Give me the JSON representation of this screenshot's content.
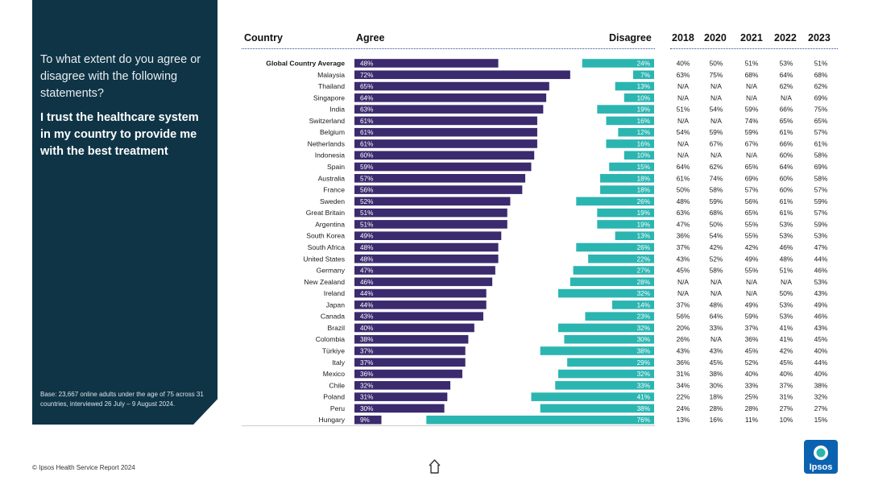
{
  "panel": {
    "question": "To what extent do you agree or disagree with the following statements?",
    "statement": "I trust the healthcare system in my country to provide me with the best treatment",
    "base_note": "Base: 23,667 online adults under the age of 75 across 31 countries, interviewed 26 July – 9 August 2024."
  },
  "headers": {
    "country": "Country",
    "agree": "Agree",
    "disagree": "Disagree",
    "years": [
      "2018",
      "2020",
      "2021",
      "2022",
      "2023"
    ]
  },
  "footer": {
    "copyright": "© Ipsos Health Service Report 2024",
    "logo_text": "Ipsos"
  },
  "colors": {
    "agree": "#3b2a6e",
    "disagree": "#2bb5b1",
    "panel": "#0f3446",
    "logo": "#0b62b0"
  },
  "chart_data": {
    "type": "bar",
    "title": "I trust the healthcare system in my country to provide me with the best treatment",
    "orientation": "horizontal diverging",
    "xlim": [
      0,
      100
    ],
    "series": [
      {
        "name": "Agree",
        "color": "#3b2a6e",
        "values": [
          48,
          72,
          65,
          64,
          63,
          61,
          61,
          61,
          60,
          59,
          57,
          56,
          52,
          51,
          51,
          49,
          48,
          48,
          47,
          46,
          44,
          44,
          43,
          40,
          38,
          37,
          37,
          36,
          32,
          31,
          30,
          9
        ]
      },
      {
        "name": "Disagree",
        "color": "#2bb5b1",
        "values": [
          24,
          7,
          13,
          10,
          19,
          16,
          12,
          16,
          10,
          15,
          18,
          18,
          26,
          19,
          19,
          13,
          26,
          22,
          27,
          28,
          32,
          14,
          23,
          32,
          30,
          38,
          29,
          32,
          33,
          41,
          38,
          76
        ]
      }
    ],
    "rows": [
      {
        "country": "Global Country Average",
        "agree": "48%",
        "disagree": "24%",
        "y2018": "40%",
        "y2020": "50%",
        "y2021": "51%",
        "y2022": "53%",
        "y2023": "51%"
      },
      {
        "country": "Malaysia",
        "agree": "72%",
        "disagree": "7%",
        "y2018": "63%",
        "y2020": "75%",
        "y2021": "68%",
        "y2022": "64%",
        "y2023": "68%"
      },
      {
        "country": "Thailand",
        "agree": "65%",
        "disagree": "13%",
        "y2018": "N/A",
        "y2020": "N/A",
        "y2021": "N/A",
        "y2022": "62%",
        "y2023": "62%"
      },
      {
        "country": "Singapore",
        "agree": "64%",
        "disagree": "10%",
        "y2018": "N/A",
        "y2020": "N/A",
        "y2021": "N/A",
        "y2022": "N/A",
        "y2023": "69%"
      },
      {
        "country": "India",
        "agree": "63%",
        "disagree": "19%",
        "y2018": "51%",
        "y2020": "54%",
        "y2021": "59%",
        "y2022": "66%",
        "y2023": "75%"
      },
      {
        "country": "Switzerland",
        "agree": "61%",
        "disagree": "16%",
        "y2018": "N/A",
        "y2020": "N/A",
        "y2021": "74%",
        "y2022": "65%",
        "y2023": "65%"
      },
      {
        "country": "Belgium",
        "agree": "61%",
        "disagree": "12%",
        "y2018": "54%",
        "y2020": "59%",
        "y2021": "59%",
        "y2022": "61%",
        "y2023": "57%"
      },
      {
        "country": "Netherlands",
        "agree": "61%",
        "disagree": "16%",
        "y2018": "N/A",
        "y2020": "67%",
        "y2021": "67%",
        "y2022": "66%",
        "y2023": "61%"
      },
      {
        "country": "Indonesia",
        "agree": "60%",
        "disagree": "10%",
        "y2018": "N/A",
        "y2020": "N/A",
        "y2021": "N/A",
        "y2022": "60%",
        "y2023": "58%"
      },
      {
        "country": "Spain",
        "agree": "59%",
        "disagree": "15%",
        "y2018": "64%",
        "y2020": "62%",
        "y2021": "65%",
        "y2022": "64%",
        "y2023": "69%"
      },
      {
        "country": "Australia",
        "agree": "57%",
        "disagree": "18%",
        "y2018": "61%",
        "y2020": "74%",
        "y2021": "69%",
        "y2022": "60%",
        "y2023": "58%"
      },
      {
        "country": "France",
        "agree": "56%",
        "disagree": "18%",
        "y2018": "50%",
        "y2020": "58%",
        "y2021": "57%",
        "y2022": "60%",
        "y2023": "57%"
      },
      {
        "country": "Sweden",
        "agree": "52%",
        "disagree": "26%",
        "y2018": "48%",
        "y2020": "59%",
        "y2021": "56%",
        "y2022": "61%",
        "y2023": "59%"
      },
      {
        "country": "Great Britain",
        "agree": "51%",
        "disagree": "19%",
        "y2018": "63%",
        "y2020": "68%",
        "y2021": "65%",
        "y2022": "61%",
        "y2023": "57%"
      },
      {
        "country": "Argentina",
        "agree": "51%",
        "disagree": "19%",
        "y2018": "47%",
        "y2020": "50%",
        "y2021": "55%",
        "y2022": "53%",
        "y2023": "59%"
      },
      {
        "country": "South Korea",
        "agree": "49%",
        "disagree": "13%",
        "y2018": "36%",
        "y2020": "54%",
        "y2021": "55%",
        "y2022": "53%",
        "y2023": "53%"
      },
      {
        "country": "South Africa",
        "agree": "48%",
        "disagree": "26%",
        "y2018": "37%",
        "y2020": "42%",
        "y2021": "42%",
        "y2022": "46%",
        "y2023": "47%"
      },
      {
        "country": "United States",
        "agree": "48%",
        "disagree": "22%",
        "y2018": "43%",
        "y2020": "52%",
        "y2021": "49%",
        "y2022": "48%",
        "y2023": "44%"
      },
      {
        "country": "Germany",
        "agree": "47%",
        "disagree": "27%",
        "y2018": "45%",
        "y2020": "58%",
        "y2021": "55%",
        "y2022": "51%",
        "y2023": "46%"
      },
      {
        "country": "New Zealand",
        "agree": "46%",
        "disagree": "28%",
        "y2018": "N/A",
        "y2020": "N/A",
        "y2021": "N/A",
        "y2022": "N/A",
        "y2023": "53%"
      },
      {
        "country": "Ireland",
        "agree": "44%",
        "disagree": "32%",
        "y2018": "N/A",
        "y2020": "N/A",
        "y2021": "N/A",
        "y2022": "50%",
        "y2023": "43%"
      },
      {
        "country": "Japan",
        "agree": "44%",
        "disagree": "14%",
        "y2018": "37%",
        "y2020": "48%",
        "y2021": "49%",
        "y2022": "53%",
        "y2023": "49%"
      },
      {
        "country": "Canada",
        "agree": "43%",
        "disagree": "23%",
        "y2018": "56%",
        "y2020": "64%",
        "y2021": "59%",
        "y2022": "53%",
        "y2023": "46%"
      },
      {
        "country": "Brazil",
        "agree": "40%",
        "disagree": "32%",
        "y2018": "20%",
        "y2020": "33%",
        "y2021": "37%",
        "y2022": "41%",
        "y2023": "43%"
      },
      {
        "country": "Colombia",
        "agree": "38%",
        "disagree": "30%",
        "y2018": "26%",
        "y2020": "N/A",
        "y2021": "36%",
        "y2022": "41%",
        "y2023": "45%"
      },
      {
        "country": "Türkiye",
        "agree": "37%",
        "disagree": "38%",
        "y2018": "43%",
        "y2020": "43%",
        "y2021": "45%",
        "y2022": "42%",
        "y2023": "40%"
      },
      {
        "country": "Italy",
        "agree": "37%",
        "disagree": "29%",
        "y2018": "36%",
        "y2020": "45%",
        "y2021": "52%",
        "y2022": "45%",
        "y2023": "44%"
      },
      {
        "country": "Mexico",
        "agree": "36%",
        "disagree": "32%",
        "y2018": "31%",
        "y2020": "38%",
        "y2021": "40%",
        "y2022": "40%",
        "y2023": "40%"
      },
      {
        "country": "Chile",
        "agree": "32%",
        "disagree": "33%",
        "y2018": "34%",
        "y2020": "30%",
        "y2021": "33%",
        "y2022": "37%",
        "y2023": "38%"
      },
      {
        "country": "Poland",
        "agree": "31%",
        "disagree": "41%",
        "y2018": "22%",
        "y2020": "18%",
        "y2021": "25%",
        "y2022": "31%",
        "y2023": "32%"
      },
      {
        "country": "Peru",
        "agree": "30%",
        "disagree": "38%",
        "y2018": "24%",
        "y2020": "28%",
        "y2021": "28%",
        "y2022": "27%",
        "y2023": "27%"
      },
      {
        "country": "Hungary",
        "agree": "9%",
        "disagree": "76%",
        "y2018": "13%",
        "y2020": "16%",
        "y2021": "11%",
        "y2022": "10%",
        "y2023": "15%"
      }
    ]
  }
}
